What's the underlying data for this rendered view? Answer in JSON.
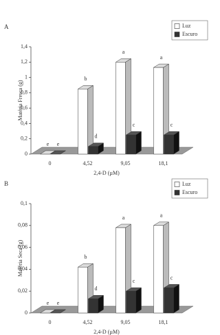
{
  "chart_data": [
    {
      "type": "bar3d",
      "panel": "A",
      "ylabel": "Matéria Fresca (g)",
      "xlabel": "2,4-D (µM)",
      "categories": [
        "0",
        "4,52",
        "9,05",
        "18,1"
      ],
      "series": [
        {
          "name": "Luz",
          "color": "#ffffff",
          "values": [
            0,
            0.85,
            1.2,
            1.13
          ],
          "letters": [
            "e",
            "b",
            "a",
            "a"
          ]
        },
        {
          "name": "Escuro",
          "color": "#333333",
          "values": [
            0,
            0.1,
            0.25,
            0.25
          ],
          "letters": [
            "e",
            "d",
            "c",
            "c"
          ]
        }
      ],
      "ylim": [
        0,
        1.4
      ],
      "yticks": [
        0,
        {
          "value": 0.2,
          "label": "0,2"
        },
        {
          "value": 0.4,
          "label": "0,4"
        },
        {
          "value": 0.6,
          "label": "0,6"
        },
        {
          "value": 0.8,
          "label": "0,8"
        },
        1,
        {
          "value": 1.2,
          "label": "1,2"
        },
        {
          "value": 1.4,
          "label": "1,4"
        }
      ],
      "legend": "upper right"
    },
    {
      "type": "bar3d",
      "panel": "B",
      "ylabel": "Matéria Seca (g)",
      "xlabel": "2,4-D (µM)",
      "categories": [
        "0",
        "4,52",
        "9,05",
        "18,1"
      ],
      "series": [
        {
          "name": "Luz",
          "color": "#ffffff",
          "values": [
            0,
            0.042,
            0.078,
            0.08
          ],
          "letters": [
            "e",
            "b",
            "a",
            "a"
          ]
        },
        {
          "name": "Escuro",
          "color": "#333333",
          "values": [
            0,
            0.013,
            0.02,
            0.023
          ],
          "letters": [
            "e",
            "d",
            "c",
            "c"
          ]
        }
      ],
      "ylim": [
        0,
        0.1
      ],
      "yticks": [
        0,
        {
          "value": 0.02,
          "label": "0,02"
        },
        {
          "value": 0.04,
          "label": "0,04"
        },
        {
          "value": 0.06,
          "label": "0,06"
        },
        {
          "value": 0.08,
          "label": "0,08"
        },
        {
          "value": 0.1,
          "label": "0,1"
        }
      ],
      "legend": "upper right"
    }
  ]
}
